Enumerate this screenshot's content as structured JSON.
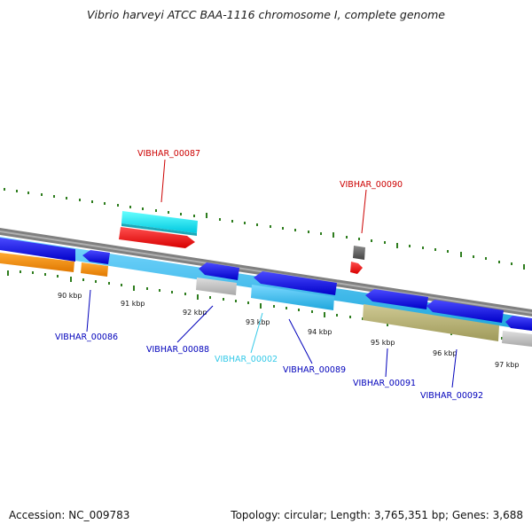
{
  "title": "Vibrio harveyi ATCC BAA-1116 chromosome I, complete genome",
  "footer": {
    "accession_label": "Accession:",
    "accession": "NC_009783",
    "topology_label": "Topology:",
    "topology": "circular",
    "length_label": "Length:",
    "length": "3,765,351 bp",
    "genes_label": "Genes:",
    "genes": "3,688"
  },
  "colors": {
    "backbone": "#808080",
    "tick": "#2e7d1e",
    "cds_blue": "#0000ee",
    "cds_lightblue": "#3bbdf0",
    "cds_cyan": "#00f0ff",
    "cds_orange": "#ff8c00",
    "cds_gray": "#bdbdbd",
    "cds_olive": "#b5b070",
    "cds_red": "#ff0000",
    "label_red": "#cc0000",
    "label_blue": "#0000bb",
    "label_cyan": "#33c9e8"
  },
  "kbp_labels": [
    "90 kbp",
    "91 kbp",
    "92 kbp",
    "93 kbp",
    "94 kbp",
    "95 kbp",
    "96 kbp",
    "97 kbp"
  ],
  "gene_labels": [
    {
      "text": "VIBHAR_00087",
      "color": "label_red"
    },
    {
      "text": "VIBHAR_00090",
      "color": "label_red"
    },
    {
      "text": "VIBHAR_00086",
      "color": "label_blue"
    },
    {
      "text": "VIBHAR_00088",
      "color": "label_blue"
    },
    {
      "text": "VIBHAR_00002",
      "color": "label_cyan"
    },
    {
      "text": "VIBHAR_00089",
      "color": "label_blue"
    },
    {
      "text": "VIBHAR_00091",
      "color": "label_blue"
    },
    {
      "text": "VIBHAR_00092",
      "color": "label_blue"
    }
  ]
}
